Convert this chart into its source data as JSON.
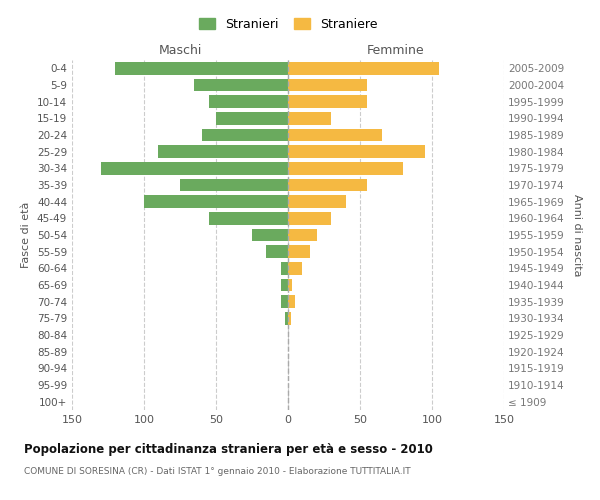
{
  "age_groups": [
    "100+",
    "95-99",
    "90-94",
    "85-89",
    "80-84",
    "75-79",
    "70-74",
    "65-69",
    "60-64",
    "55-59",
    "50-54",
    "45-49",
    "40-44",
    "35-39",
    "30-34",
    "25-29",
    "20-24",
    "15-19",
    "10-14",
    "5-9",
    "0-4"
  ],
  "birth_years": [
    "≤ 1909",
    "1910-1914",
    "1915-1919",
    "1920-1924",
    "1925-1929",
    "1930-1934",
    "1935-1939",
    "1940-1944",
    "1945-1949",
    "1950-1954",
    "1955-1959",
    "1960-1964",
    "1965-1969",
    "1970-1974",
    "1975-1979",
    "1980-1984",
    "1985-1989",
    "1990-1994",
    "1995-1999",
    "2000-2004",
    "2005-2009"
  ],
  "males": [
    0,
    0,
    0,
    0,
    0,
    2,
    5,
    5,
    5,
    15,
    25,
    55,
    100,
    75,
    130,
    90,
    60,
    50,
    55,
    65,
    120
  ],
  "females": [
    0,
    0,
    0,
    0,
    0,
    2,
    5,
    3,
    10,
    15,
    20,
    30,
    40,
    55,
    80,
    95,
    65,
    30,
    55,
    55,
    105
  ],
  "color_males": "#6aaa5e",
  "color_females": "#f5b942",
  "xlim": 150,
  "title": "Popolazione per cittadinanza straniera per età e sesso - 2010",
  "subtitle": "COMUNE DI SORESINA (CR) - Dati ISTAT 1° gennaio 2010 - Elaborazione TUTTITALIA.IT",
  "ylabel_left": "Fasce di età",
  "ylabel_right": "Anni di nascita",
  "label_maschi": "Maschi",
  "label_femmine": "Femmine",
  "legend_stranieri": "Stranieri",
  "legend_straniere": "Straniere",
  "bg_color": "#ffffff",
  "grid_color": "#cccccc",
  "centerline_color": "#aaaaaa"
}
